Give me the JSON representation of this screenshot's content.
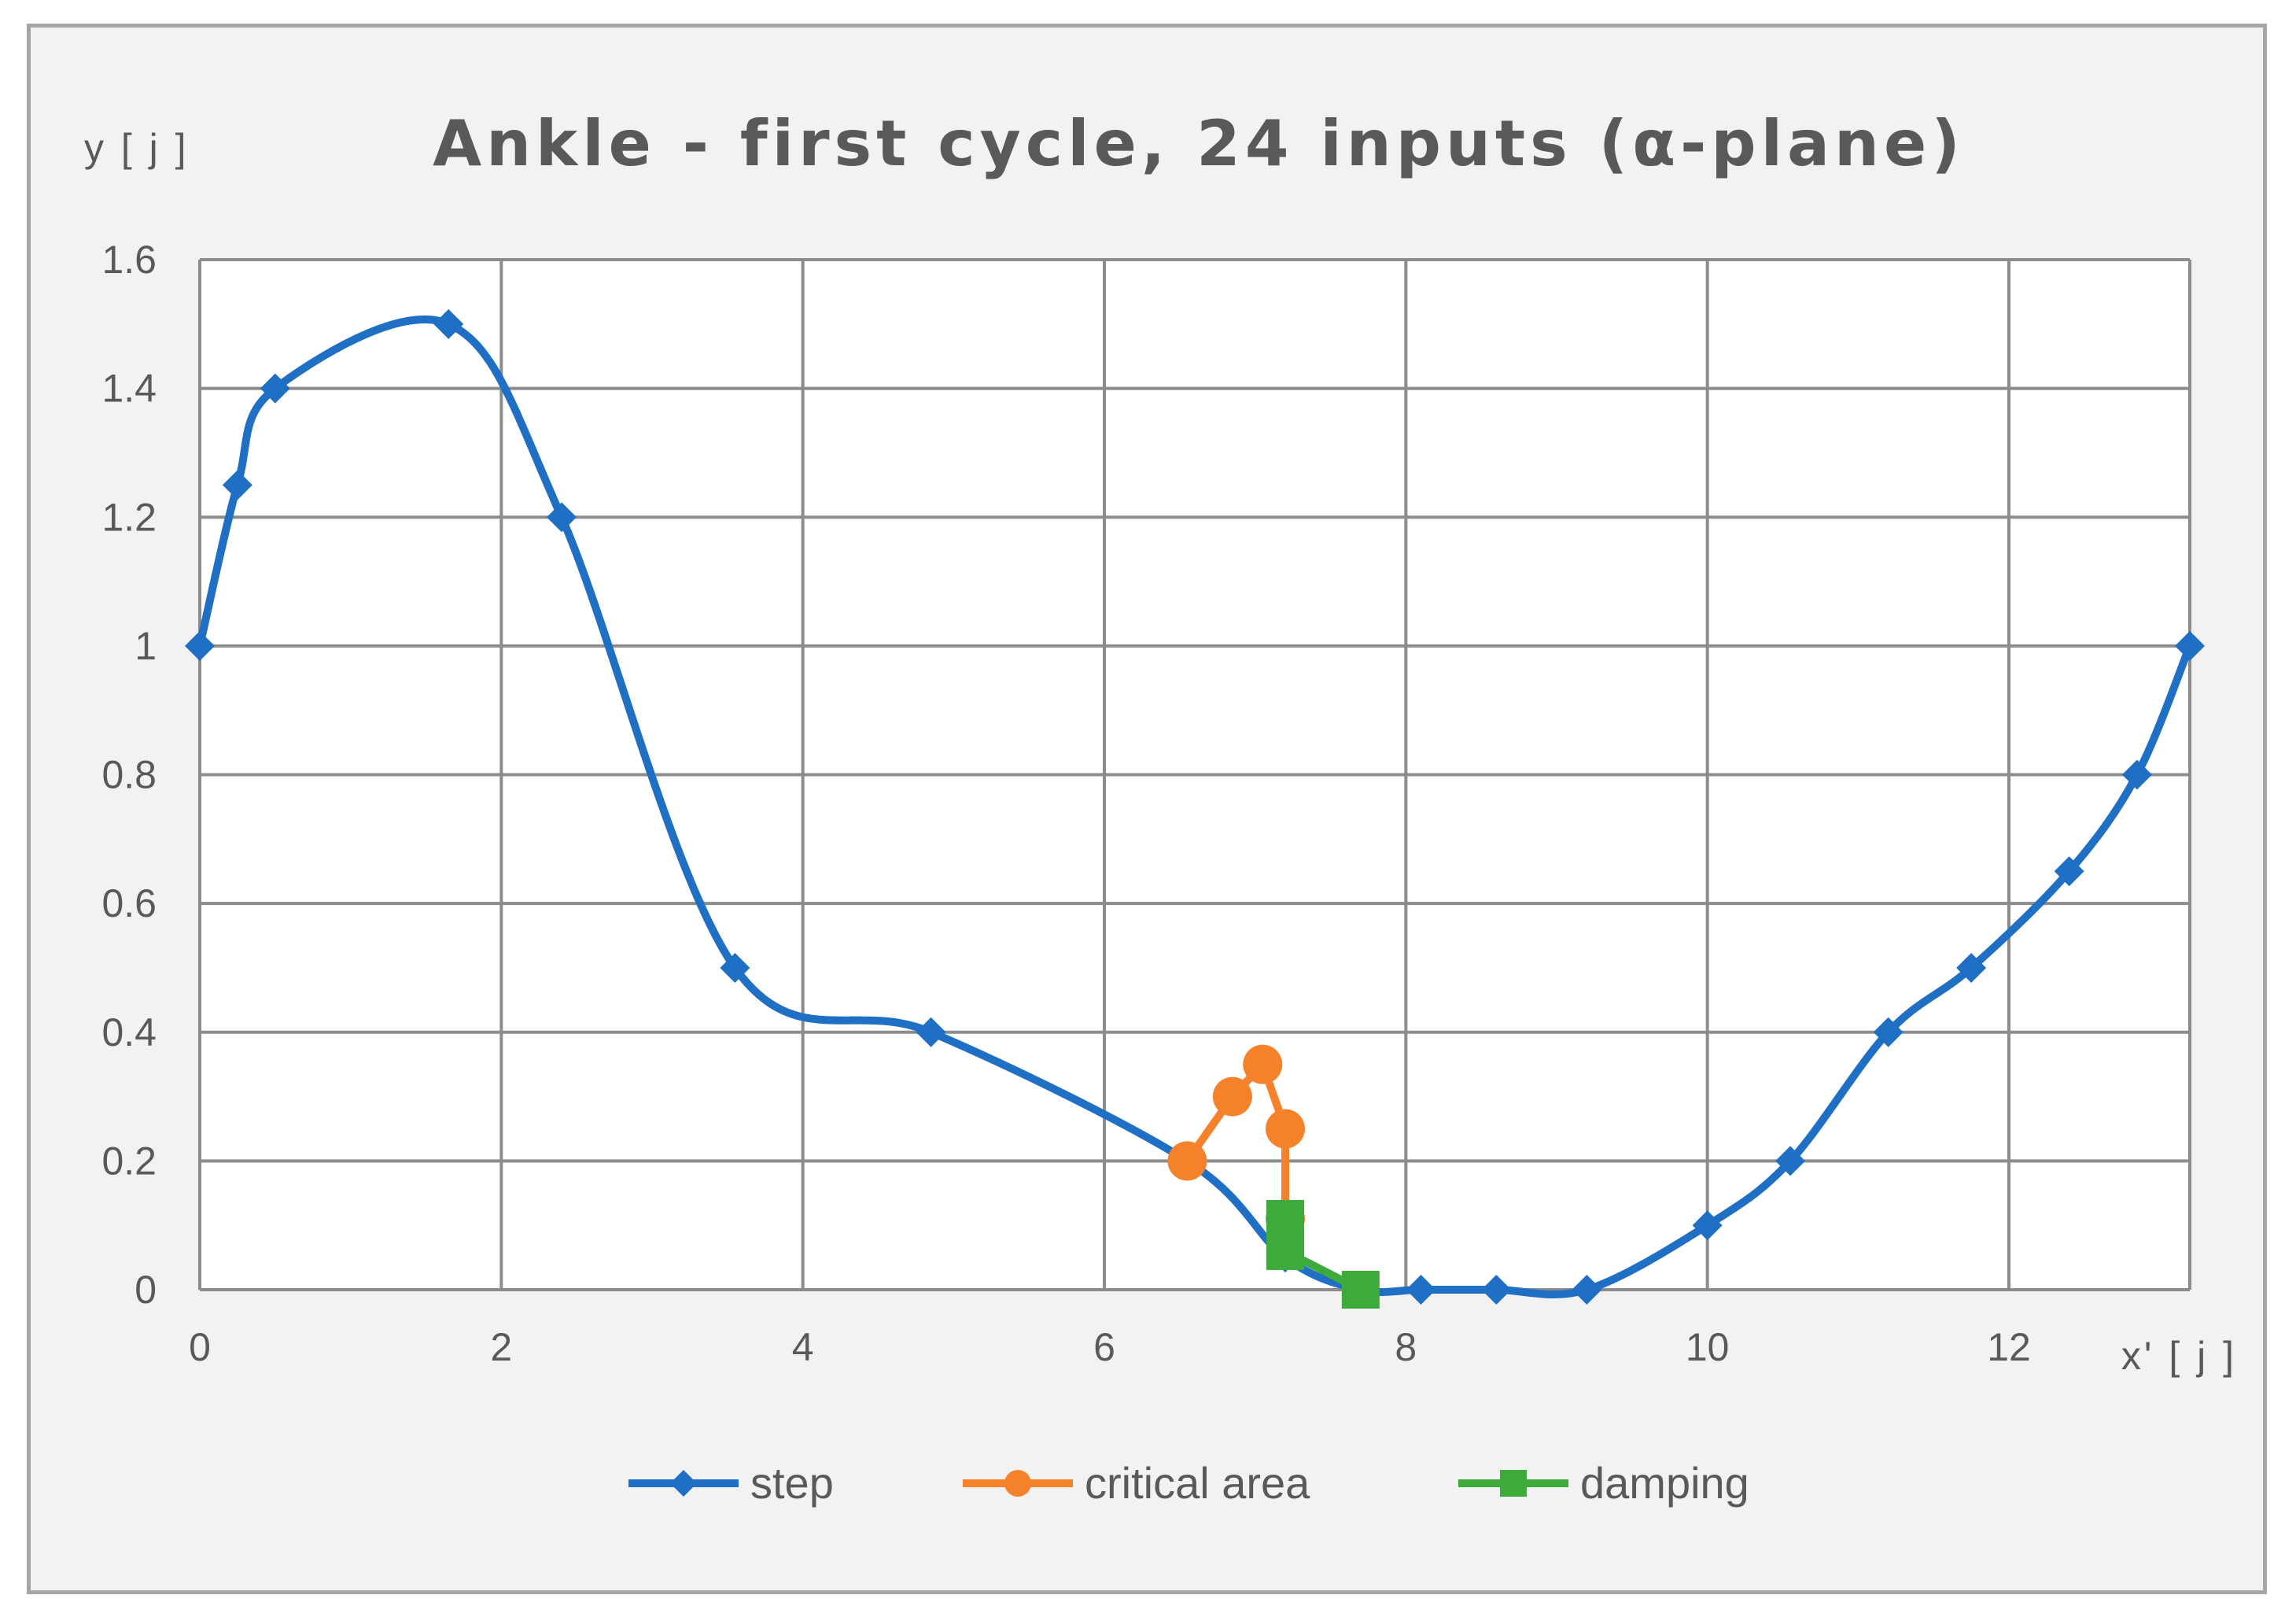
{
  "chart_data": {
    "type": "line",
    "title": "Ankle - first cycle, 24 inputs (α-plane)",
    "xlabel": "x' [ j ]",
    "ylabel": "y [ j ]",
    "xlim": [
      0,
      13.2
    ],
    "ylim": [
      0,
      1.6
    ],
    "x_ticks": [
      "0",
      "2",
      "4",
      "6",
      "8",
      "10",
      "12"
    ],
    "y_ticks": [
      "0",
      "0.2",
      "0.4",
      "0.6",
      "0.8",
      "1",
      "1.2",
      "1.4",
      "1.6"
    ],
    "grid": true,
    "legend_position": "bottom",
    "series": [
      {
        "name": "step",
        "color": "#1f6fc5",
        "marker": "diamond",
        "x": [
          0,
          0.25,
          0.5,
          1.65,
          2.4,
          3.55,
          4.85,
          6.55,
          7.2,
          7.7,
          8.1,
          8.6,
          9.2,
          10.0,
          10.55,
          11.2,
          11.75,
          12.4,
          12.85,
          13.2
        ],
        "y": [
          1.0,
          1.25,
          1.4,
          1.5,
          1.2,
          0.5,
          0.4,
          0.2,
          0.05,
          0.0,
          0.0,
          0.0,
          0.0,
          0.1,
          0.2,
          0.4,
          0.5,
          0.65,
          0.8,
          1.0
        ]
      },
      {
        "name": "critical area",
        "color": "#f5822a",
        "marker": "circle",
        "x": [
          6.55,
          6.85,
          7.05,
          7.2,
          7.2
        ],
        "y": [
          0.2,
          0.3,
          0.35,
          0.25,
          0.11
        ]
      },
      {
        "name": "damping",
        "color": "#3cab3c",
        "marker": "square",
        "x": [
          7.2,
          7.2,
          7.7
        ],
        "y": [
          0.11,
          0.06,
          0.0
        ]
      }
    ]
  }
}
